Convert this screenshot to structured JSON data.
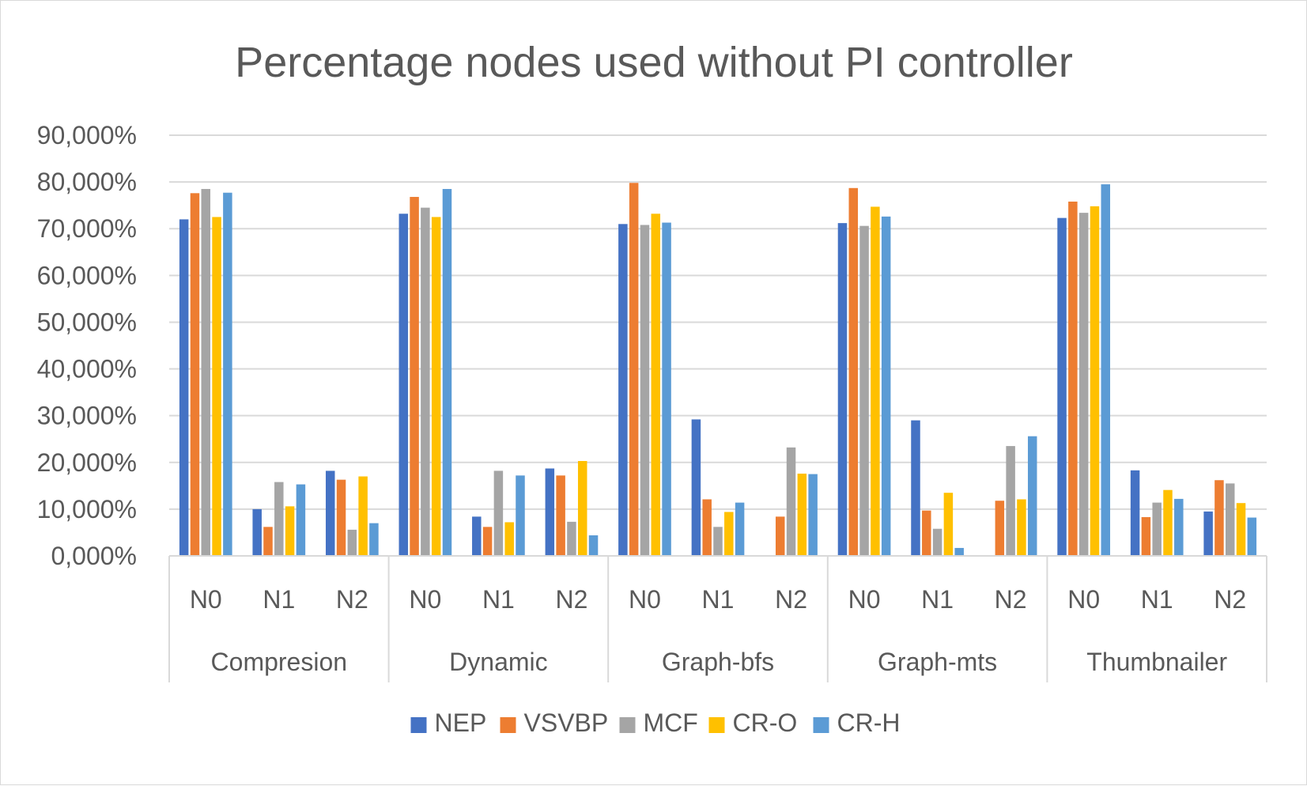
{
  "chart_data": {
    "type": "bar",
    "title": "Percentage nodes used without PI controller",
    "xlabel": "",
    "ylabel": "",
    "ylim": [
      0,
      90
    ],
    "yticks": [
      "0,000%",
      "10,000%",
      "20,000%",
      "30,000%",
      "40,000%",
      "50,000%",
      "60,000%",
      "70,000%",
      "80,000%",
      "90,000%"
    ],
    "groups": [
      {
        "name": "Compresion",
        "categories": [
          "N0",
          "N1",
          "N2"
        ]
      },
      {
        "name": "Dynamic",
        "categories": [
          "N0",
          "N1",
          "N2"
        ]
      },
      {
        "name": "Graph-bfs",
        "categories": [
          "N0",
          "N1",
          "N2"
        ]
      },
      {
        "name": "Graph-mts",
        "categories": [
          "N0",
          "N1",
          "N2"
        ]
      },
      {
        "name": "Thumbnailer",
        "categories": [
          "N0",
          "N1",
          "N2"
        ]
      }
    ],
    "grid": true,
    "legend_position": "bottom",
    "series": [
      {
        "name": "NEP",
        "color": "#4472C4",
        "values": [
          72.0,
          10.0,
          18.2,
          73.2,
          8.4,
          18.7,
          71.0,
          29.2,
          0.0,
          71.2,
          29.0,
          0.0,
          72.3,
          18.3,
          9.5
        ]
      },
      {
        "name": "VSVBP",
        "color": "#ED7D31",
        "values": [
          77.6,
          6.2,
          16.3,
          76.8,
          6.2,
          17.2,
          79.8,
          12.1,
          8.4,
          78.7,
          9.7,
          11.8,
          75.8,
          8.3,
          16.2
        ]
      },
      {
        "name": "MCF",
        "color": "#A5A5A5",
        "values": [
          78.5,
          15.8,
          5.6,
          74.5,
          18.2,
          7.3,
          70.8,
          6.2,
          23.2,
          70.6,
          5.8,
          23.5,
          73.4,
          11.4,
          15.5
        ]
      },
      {
        "name": "CR-O",
        "color": "#FFC000",
        "values": [
          72.5,
          10.6,
          17.0,
          72.5,
          7.2,
          20.3,
          73.2,
          9.4,
          17.6,
          74.7,
          13.5,
          12.1,
          74.8,
          14.1,
          11.3
        ]
      },
      {
        "name": "CR-H",
        "color": "#5B9BD5",
        "values": [
          77.7,
          15.3,
          7.0,
          78.5,
          17.2,
          4.4,
          71.3,
          11.4,
          17.5,
          72.6,
          1.7,
          25.6,
          79.5,
          12.2,
          8.2
        ]
      }
    ]
  }
}
